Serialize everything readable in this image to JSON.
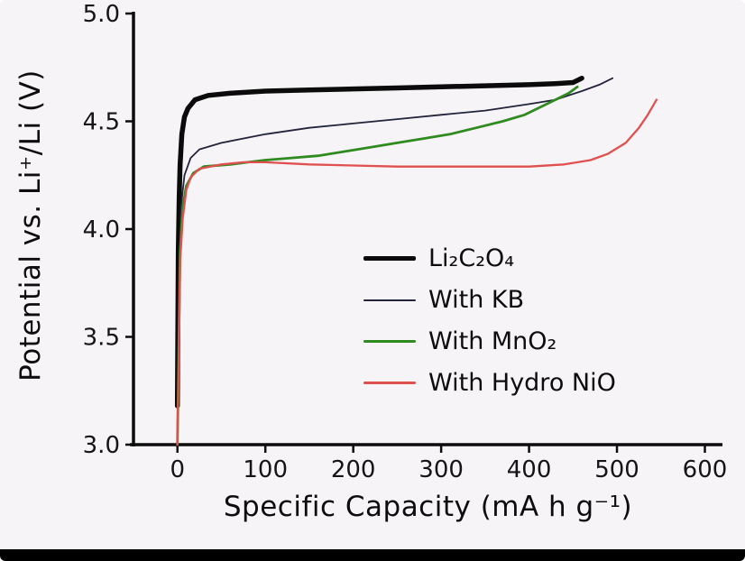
{
  "figure": {
    "background": "#f6f4f7",
    "bottom_bar_color": "#000000"
  },
  "chart_data": {
    "type": "line",
    "title": "",
    "xlabel": "Specific Capacity (mA h g⁻¹)",
    "ylabel": "Potential vs. Li⁺/Li (V)",
    "xlim": [
      -50,
      620
    ],
    "ylim": [
      3.0,
      5.0
    ],
    "xticks": [
      0,
      100,
      200,
      300,
      400,
      500,
      600
    ],
    "xtick_labels": [
      "0",
      "100",
      "200",
      "300",
      "400",
      "500",
      "600"
    ],
    "yticks": [
      3.0,
      3.5,
      4.0,
      4.5,
      5.0
    ],
    "ytick_labels": [
      "3.0",
      "3.5",
      "4.0",
      "4.5",
      "5.0"
    ],
    "grid": false,
    "legend_position": "inside lower right",
    "series": [
      {
        "name": "Li₂C₂O₄",
        "color": "#0b0b0b",
        "width": 5.5,
        "points": [
          [
            0,
            3.18
          ],
          [
            1,
            3.9
          ],
          [
            2,
            4.15
          ],
          [
            3,
            4.3
          ],
          [
            5,
            4.44
          ],
          [
            8,
            4.52
          ],
          [
            12,
            4.56
          ],
          [
            20,
            4.6
          ],
          [
            35,
            4.62
          ],
          [
            60,
            4.63
          ],
          [
            100,
            4.64
          ],
          [
            150,
            4.645
          ],
          [
            200,
            4.65
          ],
          [
            250,
            4.655
          ],
          [
            300,
            4.66
          ],
          [
            350,
            4.665
          ],
          [
            400,
            4.67
          ],
          [
            430,
            4.675
          ],
          [
            450,
            4.68
          ],
          [
            460,
            4.7
          ]
        ]
      },
      {
        "name": "With KB",
        "color": "#23233a",
        "width": 1.8,
        "points": [
          [
            0,
            3.0
          ],
          [
            2,
            3.8
          ],
          [
            4,
            4.1
          ],
          [
            8,
            4.25
          ],
          [
            15,
            4.33
          ],
          [
            25,
            4.37
          ],
          [
            50,
            4.4
          ],
          [
            100,
            4.44
          ],
          [
            150,
            4.47
          ],
          [
            200,
            4.49
          ],
          [
            250,
            4.51
          ],
          [
            300,
            4.53
          ],
          [
            350,
            4.55
          ],
          [
            400,
            4.58
          ],
          [
            430,
            4.6
          ],
          [
            460,
            4.64
          ],
          [
            480,
            4.67
          ],
          [
            495,
            4.7
          ]
        ]
      },
      {
        "name": "With MnO₂",
        "color": "#2f8a1f",
        "width": 2.8,
        "points": [
          [
            0,
            3.0
          ],
          [
            3,
            3.9
          ],
          [
            6,
            4.1
          ],
          [
            10,
            4.2
          ],
          [
            18,
            4.26
          ],
          [
            30,
            4.29
          ],
          [
            60,
            4.3
          ],
          [
            80,
            4.31
          ],
          [
            100,
            4.32
          ],
          [
            130,
            4.33
          ],
          [
            160,
            4.34
          ],
          [
            190,
            4.36
          ],
          [
            220,
            4.38
          ],
          [
            250,
            4.4
          ],
          [
            280,
            4.42
          ],
          [
            310,
            4.44
          ],
          [
            340,
            4.47
          ],
          [
            370,
            4.5
          ],
          [
            395,
            4.53
          ],
          [
            415,
            4.57
          ],
          [
            430,
            4.6
          ],
          [
            445,
            4.63
          ],
          [
            455,
            4.66
          ]
        ]
      },
      {
        "name": "With Hydro NiO",
        "color": "#e0504f",
        "width": 2.3,
        "points": [
          [
            0,
            3.0
          ],
          [
            3,
            3.85
          ],
          [
            6,
            4.05
          ],
          [
            10,
            4.18
          ],
          [
            15,
            4.24
          ],
          [
            25,
            4.28
          ],
          [
            50,
            4.3
          ],
          [
            75,
            4.31
          ],
          [
            100,
            4.31
          ],
          [
            150,
            4.3
          ],
          [
            200,
            4.295
          ],
          [
            250,
            4.29
          ],
          [
            300,
            4.29
          ],
          [
            350,
            4.29
          ],
          [
            400,
            4.29
          ],
          [
            440,
            4.3
          ],
          [
            470,
            4.32
          ],
          [
            490,
            4.35
          ],
          [
            510,
            4.4
          ],
          [
            525,
            4.47
          ],
          [
            535,
            4.53
          ],
          [
            545,
            4.6
          ]
        ]
      }
    ]
  }
}
